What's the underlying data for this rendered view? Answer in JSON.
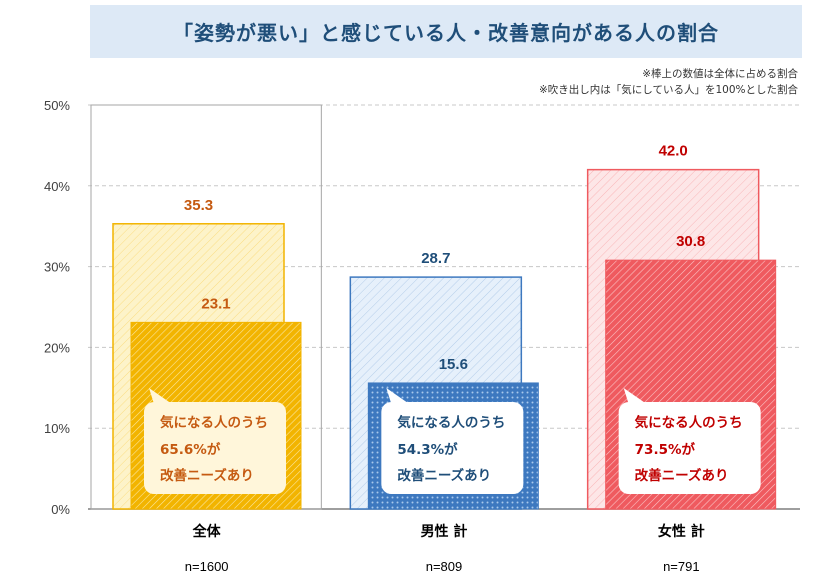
{
  "title": "「姿勢が悪い」と感じている人・改善意向がある人の割合",
  "notes": [
    "※棒上の数値は全体に占める割合",
    "※吹き出し内は「気にしている人」を100%とした割合"
  ],
  "colors": {
    "title_bg": "#dde9f6",
    "title_text": "#1f4e79",
    "all_accent": "#f2b400",
    "all_light": "#fdf3c9",
    "all_label": "#c55a11",
    "male_accent": "#3d78bf",
    "male_light": "#e6f0fb",
    "male_label": "#1f4e79",
    "female_accent": "#ef5a5f",
    "female_light": "#fde6e7",
    "female_label": "#c00000"
  },
  "chart_data": {
    "type": "bar",
    "categories": [
      "全体",
      "男性 計",
      "女性 計"
    ],
    "sample_sizes": [
      "n=1600",
      "n=809",
      "n=791"
    ],
    "series": [
      {
        "values": [
          35.3,
          28.7,
          42.0
        ],
        "labels": [
          "35.3",
          "28.7",
          "42.0"
        ]
      },
      {
        "values": [
          23.1,
          15.6,
          30.8
        ],
        "labels": [
          "23.1",
          "15.6",
          "30.8"
        ]
      }
    ],
    "callouts": [
      {
        "line1": "気になる人のうち",
        "line2": "65.6%が",
        "line3": "改善ニーズあり"
      },
      {
        "line1": "気になる人のうち",
        "line2": "54.3%が",
        "line3": "改善ニーズあり"
      },
      {
        "line1": "気になる人のうち",
        "line2": "73.5%が",
        "line3": "改善ニーズあり"
      }
    ],
    "y_ticks": [
      "0%",
      "10%",
      "20%",
      "30%",
      "40%",
      "50%"
    ],
    "ylim": [
      0,
      50
    ],
    "grid": true
  }
}
